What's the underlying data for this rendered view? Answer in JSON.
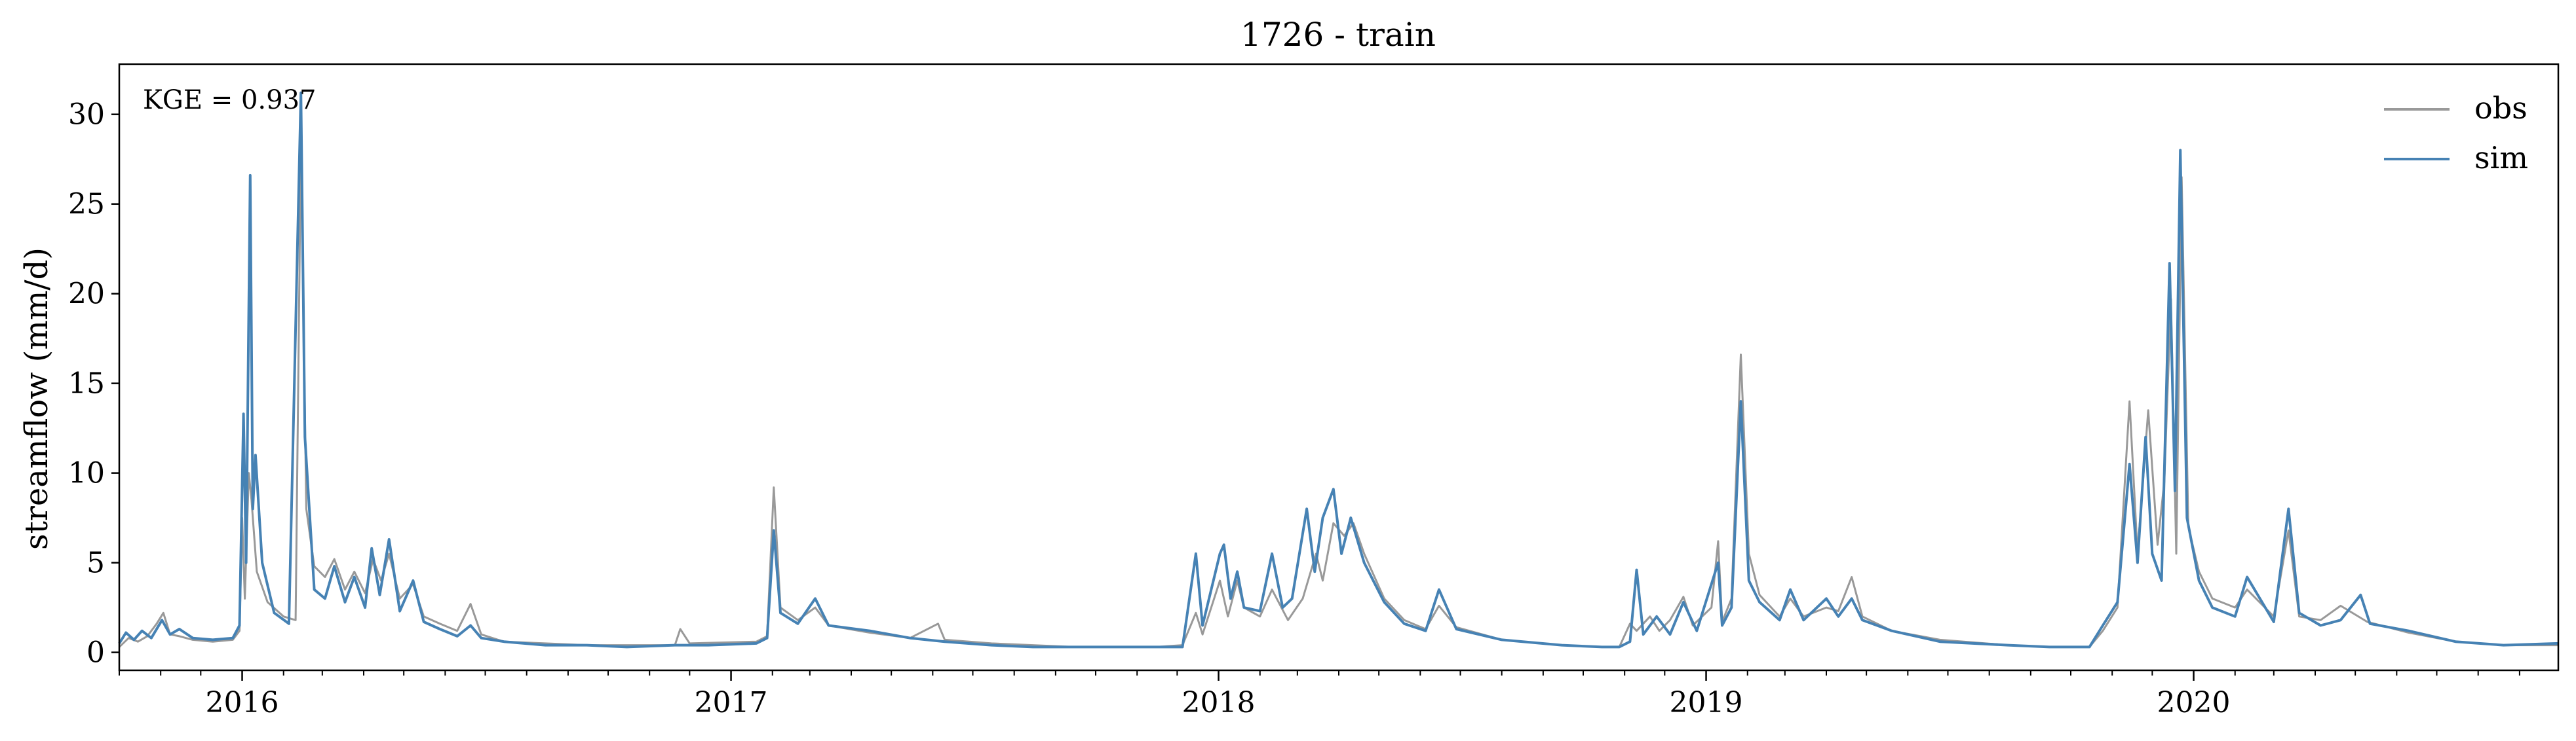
{
  "chart_data": {
    "type": "line",
    "title": "1726 - train",
    "xlabel": "",
    "ylabel": "streamflow (mm/d)",
    "annotation": "KGE = 0.937",
    "xlim": [
      "2015-10-01",
      "2020-09-30"
    ],
    "ylim": [
      -1,
      32.8
    ],
    "y_ticks": [
      0,
      5,
      10,
      15,
      20,
      25,
      30
    ],
    "x_ticks": [
      {
        "date": "2016-01-01",
        "label": "2016"
      },
      {
        "date": "2017-01-01",
        "label": "2017"
      },
      {
        "date": "2018-01-01",
        "label": "2018"
      },
      {
        "date": "2019-01-01",
        "label": "2019"
      },
      {
        "date": "2020-01-01",
        "label": "2020"
      }
    ],
    "grid": false,
    "legend_position": "top-right",
    "series": [
      {
        "name": "obs",
        "color": "#999999",
        "points": [
          [
            "2015-10-01",
            0.3
          ],
          [
            "2015-10-08",
            0.8
          ],
          [
            "2015-10-15",
            0.6
          ],
          [
            "2015-10-22",
            0.9
          ],
          [
            "2015-10-29",
            1.6
          ],
          [
            "2015-11-03",
            2.2
          ],
          [
            "2015-11-08",
            1.0
          ],
          [
            "2015-11-15",
            0.9
          ],
          [
            "2015-11-25",
            0.7
          ],
          [
            "2015-12-10",
            0.6
          ],
          [
            "2015-12-25",
            0.7
          ],
          [
            "2015-12-30",
            1.2
          ],
          [
            "2016-01-01",
            7.5
          ],
          [
            "2016-01-03",
            3.0
          ],
          [
            "2016-01-06",
            10.0
          ],
          [
            "2016-01-08",
            8.5
          ],
          [
            "2016-01-12",
            4.5
          ],
          [
            "2016-01-20",
            2.8
          ],
          [
            "2016-02-01",
            2.0
          ],
          [
            "2016-02-10",
            1.8
          ],
          [
            "2016-02-14",
            28.5
          ],
          [
            "2016-02-18",
            8.0
          ],
          [
            "2016-02-24",
            4.8
          ],
          [
            "2016-03-03",
            4.2
          ],
          [
            "2016-03-10",
            5.2
          ],
          [
            "2016-03-18",
            3.5
          ],
          [
            "2016-03-25",
            4.5
          ],
          [
            "2016-04-02",
            3.3
          ],
          [
            "2016-04-08",
            5.2
          ],
          [
            "2016-04-14",
            4.0
          ],
          [
            "2016-04-20",
            5.5
          ],
          [
            "2016-04-28",
            3.0
          ],
          [
            "2016-05-08",
            3.8
          ],
          [
            "2016-05-16",
            2.0
          ],
          [
            "2016-05-28",
            1.6
          ],
          [
            "2016-06-10",
            1.2
          ],
          [
            "2016-06-20",
            2.7
          ],
          [
            "2016-06-28",
            1.0
          ],
          [
            "2016-07-15",
            0.6
          ],
          [
            "2016-08-15",
            0.5
          ],
          [
            "2016-09-15",
            0.4
          ],
          [
            "2016-10-15",
            0.4
          ],
          [
            "2016-11-20",
            0.4
          ],
          [
            "2016-11-24",
            1.3
          ],
          [
            "2016-12-01",
            0.5
          ],
          [
            "2017-01-20",
            0.6
          ],
          [
            "2017-01-28",
            0.9
          ],
          [
            "2017-02-02",
            9.2
          ],
          [
            "2017-02-07",
            2.5
          ],
          [
            "2017-02-20",
            1.8
          ],
          [
            "2017-03-05",
            2.5
          ],
          [
            "2017-03-15",
            1.5
          ],
          [
            "2017-04-15",
            1.1
          ],
          [
            "2017-05-15",
            0.8
          ],
          [
            "2017-06-05",
            1.6
          ],
          [
            "2017-06-10",
            0.7
          ],
          [
            "2017-07-15",
            0.5
          ],
          [
            "2017-08-15",
            0.4
          ],
          [
            "2017-09-15",
            0.3
          ],
          [
            "2017-10-15",
            0.3
          ],
          [
            "2017-11-15",
            0.3
          ],
          [
            "2017-12-05",
            0.4
          ],
          [
            "2017-12-15",
            2.2
          ],
          [
            "2017-12-20",
            1.0
          ],
          [
            "2018-01-02",
            4.0
          ],
          [
            "2018-01-08",
            2.0
          ],
          [
            "2018-01-15",
            4.0
          ],
          [
            "2018-01-20",
            2.5
          ],
          [
            "2018-02-01",
            2.0
          ],
          [
            "2018-02-10",
            3.5
          ],
          [
            "2018-02-22",
            1.8
          ],
          [
            "2018-03-05",
            3.0
          ],
          [
            "2018-03-15",
            5.5
          ],
          [
            "2018-03-20",
            4.0
          ],
          [
            "2018-03-28",
            7.2
          ],
          [
            "2018-04-05",
            6.5
          ],
          [
            "2018-04-12",
            7.2
          ],
          [
            "2018-04-20",
            5.5
          ],
          [
            "2018-05-05",
            3.0
          ],
          [
            "2018-05-20",
            1.8
          ],
          [
            "2018-06-05",
            1.3
          ],
          [
            "2018-06-15",
            2.6
          ],
          [
            "2018-06-28",
            1.4
          ],
          [
            "2018-08-01",
            0.7
          ],
          [
            "2018-09-15",
            0.4
          ],
          [
            "2018-10-15",
            0.3
          ],
          [
            "2018-10-28",
            0.3
          ],
          [
            "2018-11-05",
            1.6
          ],
          [
            "2018-11-10",
            1.2
          ],
          [
            "2018-11-20",
            2.0
          ],
          [
            "2018-11-27",
            1.2
          ],
          [
            "2018-12-05",
            1.8
          ],
          [
            "2018-12-15",
            3.1
          ],
          [
            "2018-12-22",
            1.5
          ],
          [
            "2019-01-05",
            2.5
          ],
          [
            "2019-01-10",
            6.2
          ],
          [
            "2019-01-13",
            1.7
          ],
          [
            "2019-01-20",
            3.0
          ],
          [
            "2019-01-27",
            16.6
          ],
          [
            "2019-02-02",
            5.5
          ],
          [
            "2019-02-10",
            3.2
          ],
          [
            "2019-02-25",
            2.0
          ],
          [
            "2019-03-05",
            3.0
          ],
          [
            "2019-03-15",
            2.0
          ],
          [
            "2019-04-01",
            2.5
          ],
          [
            "2019-04-10",
            2.3
          ],
          [
            "2019-04-20",
            4.2
          ],
          [
            "2019-04-28",
            2.0
          ],
          [
            "2019-05-20",
            1.2
          ],
          [
            "2019-06-25",
            0.7
          ],
          [
            "2019-08-15",
            0.4
          ],
          [
            "2019-09-15",
            0.3
          ],
          [
            "2019-10-15",
            0.3
          ],
          [
            "2019-10-25",
            1.2
          ],
          [
            "2019-11-05",
            2.5
          ],
          [
            "2019-11-14",
            14.0
          ],
          [
            "2019-11-20",
            5.5
          ],
          [
            "2019-11-28",
            13.5
          ],
          [
            "2019-12-05",
            6.0
          ],
          [
            "2019-12-10",
            9.5
          ],
          [
            "2019-12-15",
            19.7
          ],
          [
            "2019-12-19",
            5.5
          ],
          [
            "2019-12-23",
            26.5
          ],
          [
            "2019-12-28",
            7.0
          ],
          [
            "2020-01-05",
            4.5
          ],
          [
            "2020-01-15",
            3.0
          ],
          [
            "2020-02-01",
            2.5
          ],
          [
            "2020-02-10",
            3.5
          ],
          [
            "2020-03-01",
            2.0
          ],
          [
            "2020-03-12",
            6.8
          ],
          [
            "2020-03-20",
            2.0
          ],
          [
            "2020-04-05",
            1.8
          ],
          [
            "2020-04-20",
            2.6
          ],
          [
            "2020-05-10",
            1.7
          ],
          [
            "2020-06-10",
            1.1
          ],
          [
            "2020-07-15",
            0.6
          ],
          [
            "2020-08-20",
            0.4
          ],
          [
            "2020-09-30",
            0.4
          ]
        ]
      },
      {
        "name": "sim",
        "color": "#4682b4",
        "points": [
          [
            "2015-10-01",
            0.5
          ],
          [
            "2015-10-06",
            1.1
          ],
          [
            "2015-10-12",
            0.7
          ],
          [
            "2015-10-18",
            1.2
          ],
          [
            "2015-10-25",
            0.8
          ],
          [
            "2015-11-02",
            1.8
          ],
          [
            "2015-11-08",
            1.0
          ],
          [
            "2015-11-15",
            1.3
          ],
          [
            "2015-11-25",
            0.8
          ],
          [
            "2015-12-10",
            0.7
          ],
          [
            "2015-12-25",
            0.8
          ],
          [
            "2015-12-30",
            1.5
          ],
          [
            "2016-01-02",
            13.3
          ],
          [
            "2016-01-04",
            5.0
          ],
          [
            "2016-01-07",
            26.6
          ],
          [
            "2016-01-09",
            8.0
          ],
          [
            "2016-01-11",
            11.0
          ],
          [
            "2016-01-16",
            5.0
          ],
          [
            "2016-01-25",
            2.2
          ],
          [
            "2016-02-05",
            1.6
          ],
          [
            "2016-02-14",
            31.2
          ],
          [
            "2016-02-17",
            12.0
          ],
          [
            "2016-02-24",
            3.5
          ],
          [
            "2016-03-03",
            3.0
          ],
          [
            "2016-03-10",
            4.8
          ],
          [
            "2016-03-18",
            2.8
          ],
          [
            "2016-03-25",
            4.2
          ],
          [
            "2016-04-02",
            2.5
          ],
          [
            "2016-04-07",
            5.8
          ],
          [
            "2016-04-13",
            3.2
          ],
          [
            "2016-04-20",
            6.3
          ],
          [
            "2016-04-28",
            2.3
          ],
          [
            "2016-05-08",
            4.0
          ],
          [
            "2016-05-16",
            1.7
          ],
          [
            "2016-05-28",
            1.3
          ],
          [
            "2016-06-10",
            0.9
          ],
          [
            "2016-06-20",
            1.5
          ],
          [
            "2016-06-28",
            0.8
          ],
          [
            "2016-07-15",
            0.6
          ],
          [
            "2016-08-15",
            0.4
          ],
          [
            "2016-09-15",
            0.4
          ],
          [
            "2016-10-15",
            0.3
          ],
          [
            "2016-11-20",
            0.4
          ],
          [
            "2016-12-15",
            0.4
          ],
          [
            "2017-01-20",
            0.5
          ],
          [
            "2017-01-28",
            0.8
          ],
          [
            "2017-02-02",
            6.8
          ],
          [
            "2017-02-07",
            2.2
          ],
          [
            "2017-02-20",
            1.6
          ],
          [
            "2017-03-05",
            3.0
          ],
          [
            "2017-03-15",
            1.5
          ],
          [
            "2017-04-15",
            1.2
          ],
          [
            "2017-05-15",
            0.8
          ],
          [
            "2017-06-10",
            0.6
          ],
          [
            "2017-07-15",
            0.4
          ],
          [
            "2017-08-15",
            0.3
          ],
          [
            "2017-09-15",
            0.3
          ],
          [
            "2017-10-15",
            0.3
          ],
          [
            "2017-11-15",
            0.3
          ],
          [
            "2017-12-05",
            0.3
          ],
          [
            "2017-12-15",
            5.5
          ],
          [
            "2017-12-20",
            1.5
          ],
          [
            "2018-01-02",
            5.5
          ],
          [
            "2018-01-05",
            6.0
          ],
          [
            "2018-01-10",
            3.0
          ],
          [
            "2018-01-15",
            4.5
          ],
          [
            "2018-01-20",
            2.5
          ],
          [
            "2018-02-01",
            2.3
          ],
          [
            "2018-02-10",
            5.5
          ],
          [
            "2018-02-18",
            2.5
          ],
          [
            "2018-02-25",
            3.0
          ],
          [
            "2018-03-08",
            8.0
          ],
          [
            "2018-03-14",
            4.5
          ],
          [
            "2018-03-20",
            7.5
          ],
          [
            "2018-03-28",
            9.1
          ],
          [
            "2018-04-03",
            5.5
          ],
          [
            "2018-04-10",
            7.5
          ],
          [
            "2018-04-20",
            5.0
          ],
          [
            "2018-05-05",
            2.8
          ],
          [
            "2018-05-20",
            1.6
          ],
          [
            "2018-06-05",
            1.2
          ],
          [
            "2018-06-15",
            3.5
          ],
          [
            "2018-06-28",
            1.3
          ],
          [
            "2018-08-01",
            0.7
          ],
          [
            "2018-09-15",
            0.4
          ],
          [
            "2018-10-15",
            0.3
          ],
          [
            "2018-10-28",
            0.3
          ],
          [
            "2018-11-05",
            0.6
          ],
          [
            "2018-11-10",
            4.6
          ],
          [
            "2018-11-15",
            1.0
          ],
          [
            "2018-11-25",
            2.0
          ],
          [
            "2018-12-05",
            1.0
          ],
          [
            "2018-12-15",
            2.8
          ],
          [
            "2018-12-25",
            1.2
          ],
          [
            "2019-01-10",
            5.0
          ],
          [
            "2019-01-13",
            1.5
          ],
          [
            "2019-01-20",
            2.5
          ],
          [
            "2019-01-27",
            14.0
          ],
          [
            "2019-02-02",
            4.0
          ],
          [
            "2019-02-10",
            2.8
          ],
          [
            "2019-02-25",
            1.8
          ],
          [
            "2019-03-05",
            3.5
          ],
          [
            "2019-03-15",
            1.8
          ],
          [
            "2019-04-01",
            3.0
          ],
          [
            "2019-04-10",
            2.0
          ],
          [
            "2019-04-20",
            3.0
          ],
          [
            "2019-04-28",
            1.8
          ],
          [
            "2019-05-20",
            1.2
          ],
          [
            "2019-06-25",
            0.6
          ],
          [
            "2019-08-15",
            0.4
          ],
          [
            "2019-09-15",
            0.3
          ],
          [
            "2019-10-15",
            0.3
          ],
          [
            "2019-10-25",
            1.5
          ],
          [
            "2019-11-05",
            2.8
          ],
          [
            "2019-11-14",
            10.5
          ],
          [
            "2019-11-20",
            5.0
          ],
          [
            "2019-11-26",
            12.0
          ],
          [
            "2019-12-01",
            5.5
          ],
          [
            "2019-12-08",
            4.0
          ],
          [
            "2019-12-14",
            21.7
          ],
          [
            "2019-12-18",
            9.0
          ],
          [
            "2019-12-22",
            28.0
          ],
          [
            "2019-12-27",
            7.5
          ],
          [
            "2020-01-05",
            4.0
          ],
          [
            "2020-01-15",
            2.5
          ],
          [
            "2020-02-01",
            2.0
          ],
          [
            "2020-02-10",
            4.2
          ],
          [
            "2020-03-01",
            1.7
          ],
          [
            "2020-03-12",
            8.0
          ],
          [
            "2020-03-20",
            2.2
          ],
          [
            "2020-04-05",
            1.5
          ],
          [
            "2020-04-20",
            1.8
          ],
          [
            "2020-05-05",
            3.2
          ],
          [
            "2020-05-12",
            1.6
          ],
          [
            "2020-06-10",
            1.2
          ],
          [
            "2020-07-15",
            0.6
          ],
          [
            "2020-08-20",
            0.4
          ],
          [
            "2020-09-30",
            0.5
          ]
        ]
      }
    ]
  }
}
